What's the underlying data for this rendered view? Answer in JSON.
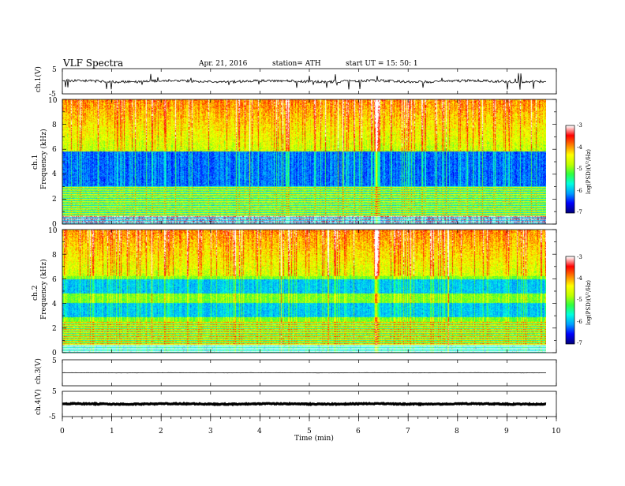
{
  "header": {
    "title": "VLF  Spectra",
    "date": "Apr. 21, 2016",
    "station": "station= ATH",
    "start": "start  UT  =    15: 50: 1"
  },
  "chart_data": [
    {
      "type": "line",
      "ylabel": "ch.1(V)",
      "ylim": [
        -5,
        5
      ],
      "yticks": [
        "5",
        "-5"
      ],
      "xlim": [
        0,
        10
      ],
      "baseline": 0,
      "noise": "high"
    },
    {
      "type": "heatmap",
      "ylabel": "ch.1\nFrequency (kHz)",
      "ylabel_lines": [
        "ch.1",
        "Frequency (kHz)"
      ],
      "ylim": [
        0,
        10
      ],
      "yticks": [
        "0",
        "2",
        "4",
        "6",
        "8",
        "10"
      ],
      "xlim": [
        0,
        10
      ],
      "colorbar": {
        "label": "log(PSD)(V²/Hz)",
        "range": [
          -7,
          -3
        ],
        "ticks": [
          "-3",
          "-4",
          "-5",
          "-6",
          "-7"
        ],
        "colors": [
          "#000080",
          "#0000ff",
          "#00a0ff",
          "#00ffe0",
          "#30ff40",
          "#c0ff00",
          "#ffff00",
          "#ff8000",
          "#ff0000",
          "#ffffff"
        ]
      },
      "description_bands": {
        "low_kHz": [
          0,
          3.0
        ],
        "quiet_band_kHz": [
          3.0,
          5.8
        ],
        "upper_kHz": [
          5.8,
          10
        ]
      }
    },
    {
      "type": "heatmap",
      "ylabel": "ch.2\nFrequency (kHz)",
      "ylabel_lines": [
        "ch.2",
        "Frequency (kHz)"
      ],
      "ylim": [
        0,
        10
      ],
      "yticks": [
        "0",
        "2",
        "4",
        "6",
        "8",
        "10"
      ],
      "xlim": [
        0,
        10
      ],
      "colorbar": {
        "label": "log(PSD)(V²/Hz)",
        "range": [
          -7,
          -3
        ],
        "ticks": [
          "-3",
          "-4",
          "-5",
          "-6",
          "-7"
        ],
        "colors": [
          "#000080",
          "#0000ff",
          "#00a0ff",
          "#00ffe0",
          "#30ff40",
          "#c0ff00",
          "#ffff00",
          "#ff8000",
          "#ff0000",
          "#ffffff"
        ]
      }
    },
    {
      "type": "line",
      "ylabel": "ch.3(V)",
      "ylim": [
        -5,
        5
      ],
      "yticks": [
        "5"
      ],
      "xlim": [
        0,
        10
      ],
      "baseline": 0,
      "noise": "none"
    },
    {
      "type": "line",
      "ylabel": "ch.4(V)",
      "ylim": [
        -5,
        5
      ],
      "yticks": [
        "5",
        "-5"
      ],
      "xlim": [
        0,
        10
      ],
      "baseline": 0,
      "noise": "thick"
    }
  ],
  "xaxis": {
    "label": "Time  (min)",
    "ticks": [
      "0",
      "1",
      "2",
      "3",
      "4",
      "5",
      "6",
      "7",
      "8",
      "9",
      "10"
    ],
    "range": [
      0,
      10
    ],
    "data_end": 9.8
  }
}
